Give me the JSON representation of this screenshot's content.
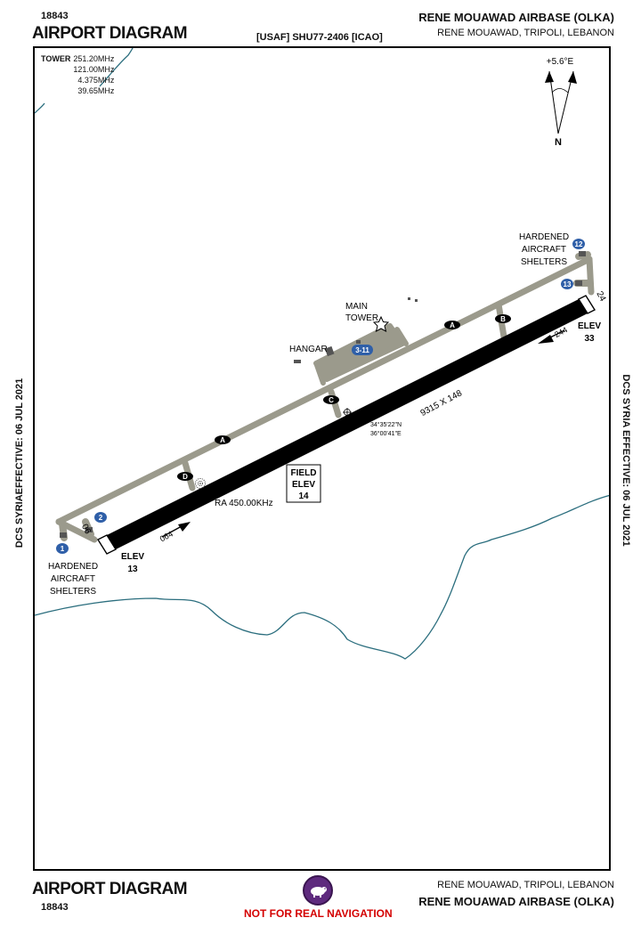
{
  "header": {
    "chart_number": "18843",
    "title": "AIRPORT DIAGRAM",
    "code": "[USAF] SHU77-2406 [ICAO]",
    "airport_name": "RENE MOUAWAD  AIRBASE (OLKA)",
    "location": "RENE MOUAWAD,  TRIPOLI, LEBANON"
  },
  "footer": {
    "title": "AIRPORT DIAGRAM",
    "chart_number": "18843",
    "location": "RENE MOUAWAD,  TRIPOLI, LEBANON",
    "airport_name": "RENE MOUAWAD  AIRBASE (OLKA)",
    "warning": "NOT FOR REAL NAVIGATION",
    "warning_color": "#d40000",
    "logo_color": "#5e2a7e"
  },
  "side_text": {
    "left": "DCS SYRIAEFFECTIVE: 06 JUL 2021",
    "right": "DCS SYRIA EFFECTIVE: 06 JUL 2021"
  },
  "tower": {
    "label": "TOWER",
    "frequencies": [
      "251.20MHz",
      "121.00MHz",
      "4.375MHz",
      "39.65MHz"
    ]
  },
  "north": {
    "variation": "+5.6°E",
    "label": "N"
  },
  "runway": {
    "dimensions": "9315  X 148",
    "end_sw": {
      "number": "06",
      "heading": "064",
      "elev_label": "ELEV",
      "elev": "13"
    },
    "end_ne": {
      "number": "24",
      "heading": "244",
      "elev_label": "ELEV",
      "elev": "33"
    },
    "color": "#000000"
  },
  "field_elev": {
    "line1": "FIELD",
    "line2": "ELEV",
    "value": "14"
  },
  "ra": "RA 450.00KHz",
  "coords": {
    "lat": "34°35'22\"N",
    "lon": "36°00'41\"E"
  },
  "labels": {
    "shelters_sw": [
      "HARDENED",
      "AIRCRAFT",
      "SHELTERS"
    ],
    "shelters_ne": [
      "HARDENED",
      "AIRCRAFT",
      "SHELTERS"
    ],
    "main_tower": [
      "MAIN",
      "TOWER"
    ],
    "hangar": "HANGAR"
  },
  "taxiways": [
    "A",
    "A",
    "B",
    "C",
    "D"
  ],
  "spots": [
    "1",
    "2",
    "3-11",
    "12",
    "13"
  ],
  "colors": {
    "taxiway": "#9b9a8c",
    "coastline": "#2b6e7e",
    "spot_badge": "#2f5fa8"
  }
}
